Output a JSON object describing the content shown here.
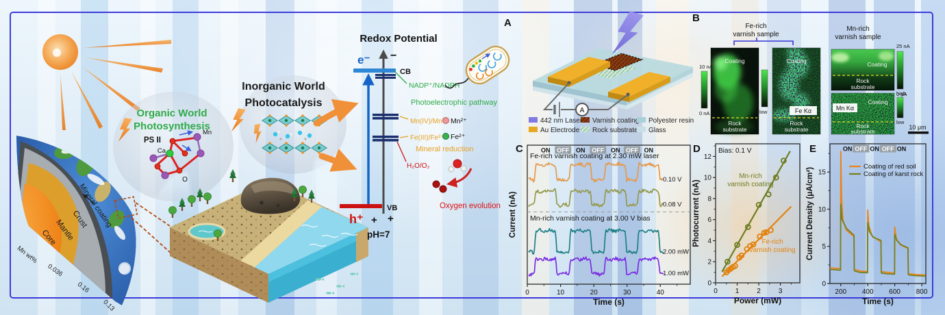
{
  "colors": {
    "frame_border": "#3b3bda",
    "green_text": "#2faa4a",
    "yellow_label": "#e8a020",
    "red_label": "#cc1111",
    "blue_electron": "#1464c8"
  },
  "illustration": {
    "earth": {
      "mineral_coating": "Mineral coating",
      "crust": "Crust",
      "mantle": "Mantle",
      "core": "Core",
      "mn_wt": "Mn wt%",
      "core_value": "0.036",
      "mantle_value": "0.16",
      "crust_value": "0.13"
    },
    "organic": {
      "line1": "Organic World",
      "line2": "Photosynthesis",
      "ps2": "PS II",
      "ca": "Ca",
      "mn": "Mn",
      "o": "O"
    },
    "inorganic": {
      "line1": "Inorganic World",
      "line2": "Photocatalysis"
    },
    "redox": {
      "title": "Redox Potential",
      "electron": "e⁻",
      "hole": "h⁺",
      "minus": "−",
      "plus": "+",
      "cb": "CB",
      "vb": "VB",
      "ph": "pH=7",
      "nadp": "NADP⁺/NADPH",
      "pathway": "Photoelectrophic pathway",
      "mn_couple": "Mn(IV)/Mn²⁺",
      "mn_ion": "Mn²⁺",
      "fe_couple": "Fe(III)/Fe²⁺",
      "fe_ion": "Fe²⁺",
      "mineral_reduction": "Mineral reduction",
      "water_couple": "H₂O/O₂",
      "oxygen_evolution": "Oxygen evolution"
    }
  },
  "panel_a": {
    "label": "A",
    "ammeter": "A",
    "legend": [
      {
        "label": "442 nm Laser",
        "color": "#8079e2"
      },
      {
        "label": "Au Electrode",
        "color": "#e7a921"
      },
      {
        "label": "Varnish coating",
        "color": "#8a3c12"
      },
      {
        "label": "Rock substrate",
        "color": "#cfe8d8"
      },
      {
        "label": "Polyester resin",
        "color": "#a9cfdb"
      },
      {
        "label": "Glass",
        "color": "#c9dfe8"
      }
    ]
  },
  "panel_b": {
    "label": "B",
    "fe_sample": [
      "Fe-rich",
      "varnish sample"
    ],
    "mn_sample": [
      "Mn-rich",
      "varnish sample"
    ],
    "coating": "Coating",
    "rock_line1": "Rock",
    "rock_line2": "substrate",
    "fe_ka": "Fe Kα",
    "mn_ka": "Mn Kα",
    "scale_bar": "10 μm",
    "colorbar_secm_fe": {
      "top": "10 nA",
      "bottom": "0 nA"
    },
    "colorbar_eds_fe": {
      "top": "high",
      "bottom": "low"
    },
    "colorbar_secm_mn": {
      "top": "25 nA",
      "bottom": "0 nA"
    },
    "colorbar_eds_mn": {
      "top": "high",
      "bottom": "low"
    }
  },
  "chart_data": [
    {
      "panel": "C",
      "type": "line",
      "subtype": "square-wave-photoresponse",
      "xlabel": "Time (s)",
      "ylabel": "Current (nA)",
      "xlim": [
        0,
        49
      ],
      "xticks": [
        0,
        10,
        20,
        30,
        40
      ],
      "x_minor": [
        5,
        15,
        25,
        35,
        45
      ],
      "ylim": [
        0,
        10
      ],
      "on_intervals": [
        [
          2.5,
          8.5
        ],
        [
          13,
          19
        ],
        [
          23.5,
          29.5
        ],
        [
          33.5,
          39.5
        ]
      ],
      "on_label": "ON",
      "off_label": "OFF",
      "divider_y": 5.2,
      "group_top_label": "Fe-rich varnish coating at 2.30 mW laser",
      "group_bottom_label": "Mn-rich varnish coating at 3.00 V bias",
      "series": [
        {
          "label": "0.10 V",
          "color": "#e39a4e",
          "baseline": 7.5,
          "on_level": 8.6
        },
        {
          "label": "0.08 V",
          "color": "#95994c",
          "baseline": 5.7,
          "on_level": 6.7
        },
        {
          "label": "2.00 mW",
          "color": "#1d7f86",
          "baseline": 2.3,
          "on_level": 3.85
        },
        {
          "label": "1.00 mW",
          "color": "#7a2ee2",
          "baseline": 0.75,
          "on_level": 1.8
        }
      ]
    },
    {
      "panel": "D",
      "type": "scatter",
      "annotation": "Bias: 0.1 V",
      "xlabel": "Power (mW)",
      "ylabel": "Photocurrent (nA)",
      "xlim": [
        0,
        3.9
      ],
      "ylim": [
        0,
        13.2
      ],
      "xticks": [
        0,
        1,
        2,
        3
      ],
      "x_minor": [
        0.5,
        1.5,
        2.5,
        3.5
      ],
      "yticks": [
        0,
        2,
        4,
        6,
        8,
        10,
        12
      ],
      "y_minor": [
        1,
        3,
        5,
        7,
        9,
        11,
        13
      ],
      "series": [
        {
          "label_lines": [
            "Mn-rich",
            "varnish coating"
          ],
          "color": "#6e7d22",
          "fit_line": [
            [
              0.3,
              1.05
            ],
            [
              3.45,
              12.5
            ]
          ],
          "points": [
            [
              0.55,
              2.0
            ],
            [
              1.0,
              3.6
            ],
            [
              1.5,
              5.3
            ],
            [
              2.0,
              7.4
            ],
            [
              2.45,
              8.4
            ],
            [
              2.8,
              10.0
            ],
            [
              3.15,
              11.6
            ]
          ]
        },
        {
          "label_lines": [
            "Fe-rich",
            "varnish coating"
          ],
          "color": "#e2820f",
          "fit_line": [
            [
              0.3,
              0.6
            ],
            [
              3.5,
              7.25
            ]
          ],
          "points": [
            [
              0.5,
              1.0
            ],
            [
              0.6,
              1.2
            ],
            [
              0.7,
              1.35
            ],
            [
              0.8,
              1.5
            ],
            [
              0.9,
              1.6
            ],
            [
              1.1,
              2.4
            ],
            [
              1.2,
              2.6
            ],
            [
              1.45,
              3.2
            ],
            [
              1.6,
              3.5
            ],
            [
              1.75,
              3.65
            ],
            [
              2.05,
              4.4
            ],
            [
              2.25,
              4.75
            ],
            [
              2.35,
              4.8
            ],
            [
              2.55,
              5.0
            ]
          ]
        }
      ]
    },
    {
      "panel": "E",
      "type": "line",
      "xlabel": "Time (s)",
      "ylabel": "Current Density (μA/cm²)",
      "xlim": [
        120,
        830
      ],
      "xticks": [
        200,
        400,
        600,
        800
      ],
      "x_minor": [
        300,
        500,
        700
      ],
      "ylim": [
        0,
        18.8
      ],
      "yticks": [
        0,
        5,
        10,
        15
      ],
      "y_minor": [
        2.5,
        7.5,
        12.5,
        17.5
      ],
      "on_intervals": [
        [
          200,
          300
        ],
        [
          400,
          500
        ],
        [
          600,
          700
        ]
      ],
      "on_label": "ON",
      "off_label": "OFF",
      "series": [
        {
          "label": "Coating of red soil",
          "color": "#e8851c",
          "points": [
            [
              120,
              2.1
            ],
            [
              198,
              2.0
            ],
            [
              200,
              17.8
            ],
            [
              206,
              11.5
            ],
            [
              216,
              8.6
            ],
            [
              240,
              7.2
            ],
            [
              298,
              6.3
            ],
            [
              300,
              2.0
            ],
            [
              302,
              1.9
            ],
            [
              340,
              1.7
            ],
            [
              398,
              1.6
            ],
            [
              400,
              9.9
            ],
            [
              408,
              7.8
            ],
            [
              432,
              6.4
            ],
            [
              498,
              5.6
            ],
            [
              500,
              1.7
            ],
            [
              502,
              1.6
            ],
            [
              545,
              1.5
            ],
            [
              598,
              1.4
            ],
            [
              600,
              7.6
            ],
            [
              612,
              6.0
            ],
            [
              642,
              5.2
            ],
            [
              698,
              4.7
            ],
            [
              700,
              1.35
            ],
            [
              705,
              1.3
            ],
            [
              760,
              1.2
            ],
            [
              828,
              1.15
            ]
          ]
        },
        {
          "label": "Coating of karst rock",
          "color": "#75801f",
          "points": [
            [
              120,
              1.9
            ],
            [
              198,
              1.8
            ],
            [
              200,
              10.7
            ],
            [
              210,
              8.6
            ],
            [
              242,
              7.4
            ],
            [
              298,
              6.5
            ],
            [
              300,
              1.8
            ],
            [
              302,
              1.7
            ],
            [
              340,
              1.5
            ],
            [
              398,
              1.45
            ],
            [
              400,
              8.2
            ],
            [
              412,
              7.0
            ],
            [
              442,
              6.2
            ],
            [
              498,
              5.8
            ],
            [
              500,
              1.5
            ],
            [
              502,
              1.4
            ],
            [
              545,
              1.3
            ],
            [
              598,
              1.25
            ],
            [
              600,
              6.6
            ],
            [
              615,
              5.8
            ],
            [
              648,
              5.2
            ],
            [
              698,
              4.8
            ],
            [
              700,
              1.2
            ],
            [
              705,
              1.15
            ],
            [
              760,
              1.05
            ],
            [
              828,
              1.0
            ]
          ]
        }
      ]
    }
  ]
}
